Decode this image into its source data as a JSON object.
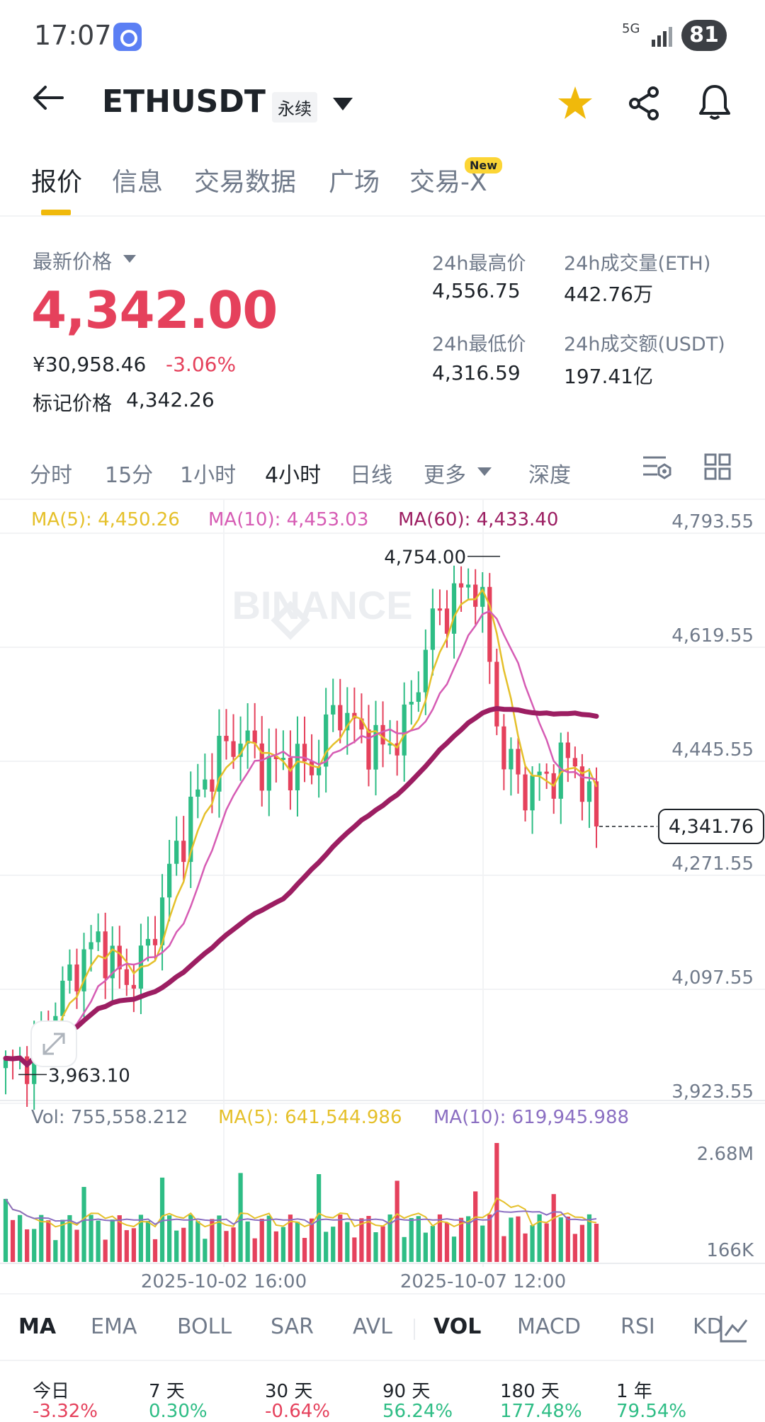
{
  "status_bar": {
    "time": "17:07",
    "network": "5G",
    "battery": "81"
  },
  "header": {
    "symbol": "ETHUSDT",
    "contract_type": "永续"
  },
  "tabs": [
    {
      "label": "报价",
      "active": true
    },
    {
      "label": "信息"
    },
    {
      "label": "交易数据"
    },
    {
      "label": "广场"
    },
    {
      "label": "交易-X",
      "badge": "New"
    }
  ],
  "price": {
    "latest_label": "最新价格",
    "last": "4,342.00",
    "cny": "¥30,958.46",
    "change_pct": "-3.06%",
    "mark_label": "标记价格",
    "mark": "4,342.26"
  },
  "stats": {
    "high_label": "24h最高价",
    "high": "4,556.75",
    "low_label": "24h最低价",
    "low": "4,316.59",
    "vol_eth_label": "24h成交量(ETH)",
    "vol_eth": "442.76万",
    "vol_usdt_label": "24h成交额(USDT)",
    "vol_usdt": "197.41亿"
  },
  "intervals": [
    "分时",
    "15分",
    "1小时",
    "4小时",
    "日线",
    "更多",
    "深度"
  ],
  "active_interval": "4小时",
  "chart": {
    "ma5": "MA(5): 4,450.26",
    "ma10": "MA(10): 4,453.03",
    "ma60": "MA(60): 4,433.40",
    "y_ticks": [
      "4,793.55",
      "4,619.55",
      "4,445.55",
      "4,271.55",
      "4,097.55",
      "3,923.55"
    ],
    "high_marker": "4,754.00",
    "low_marker": "3,963.10",
    "current_price_tag": "4,341.76",
    "watermark": "BINANCE",
    "vol_text": "Vol: 755,558.212",
    "vol_ma5": "MA(5): 641,544.986",
    "vol_ma10": "MA(10): 619,945.988",
    "vol_ticks": [
      "2.68M",
      "166K"
    ],
    "x_labels": [
      "2025-10-02 16:00",
      "2025-10-07 12:00"
    ]
  },
  "colors": {
    "up": "#2ebd85",
    "down": "#e5415c",
    "ma5": "#e5c02a",
    "ma10": "#d65cb4",
    "ma60": "#9c1e62",
    "vol_ma10": "#8b6fc2",
    "accent": "#f0b90b"
  },
  "indicators": [
    "MA",
    "EMA",
    "BOLL",
    "SAR",
    "AVL",
    "VOL",
    "MACD",
    "RSI",
    "KD"
  ],
  "active_indicators": [
    "MA",
    "VOL"
  ],
  "performance": {
    "labels": [
      "今日",
      "7 天",
      "30 天",
      "90 天",
      "180 天",
      "1 年"
    ],
    "values": [
      "-3.32%",
      "0.30%",
      "-0.64%",
      "56.24%",
      "177.48%",
      "79.54%"
    ]
  },
  "chart_data": {
    "type": "candlestick",
    "interval": "4h",
    "ylim": [
      3923.55,
      4793.55
    ],
    "high": 4754.0,
    "low": 3963.1,
    "last": 4341.76,
    "ohlc_anchors": [
      3970,
      3990,
      4060,
      4130,
      4170,
      4100,
      4150,
      4280,
      4380,
      4450,
      4480,
      4430,
      4440,
      4430,
      4530,
      4480,
      4460,
      4500,
      4650,
      4690,
      4720,
      4450,
      4400,
      4420,
      4450,
      4342
    ],
    "volume_range_label": [
      "166K",
      "2.68M"
    ]
  }
}
